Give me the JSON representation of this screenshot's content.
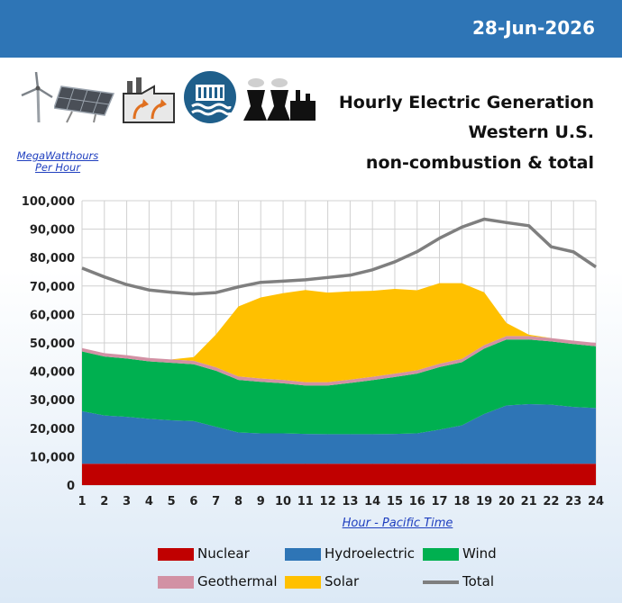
{
  "header": {
    "date": "28-Jun-2026"
  },
  "title_lines": [
    "Hourly Electric Generation",
    "Western U.S.",
    "non-combustion & total"
  ],
  "icons": [
    "wind-turbine-icon",
    "solar-panel-icon",
    "geothermal-plant-icon",
    "hydro-dam-icon",
    "power-plant-icon"
  ],
  "colors": {
    "banner": "#2e75b6",
    "nuclear": "#c00000",
    "hydro": "#2e75b6",
    "wind": "#00b050",
    "geothermal": "#d291a4",
    "solar": "#ffc000",
    "total": "#7f7f7f"
  },
  "chart_data": {
    "type": "area",
    "stacked": true,
    "ylabel": "MegaWatthours Per Hour",
    "xlabel": "Hour - Pacific Time",
    "ylim": [
      0,
      100000
    ],
    "ytick_step": 10000,
    "yticks": [
      "0",
      "10,000",
      "20,000",
      "30,000",
      "40,000",
      "50,000",
      "60,000",
      "70,000",
      "80,000",
      "90,000",
      "100,000"
    ],
    "grid": true,
    "legend_position": "bottom",
    "x": [
      1,
      2,
      3,
      4,
      5,
      6,
      7,
      8,
      9,
      10,
      11,
      12,
      13,
      14,
      15,
      16,
      17,
      18,
      19,
      20,
      21,
      22,
      23,
      24
    ],
    "series": [
      {
        "name": "Nuclear",
        "kind": "area",
        "values": [
          7500,
          7500,
          7500,
          7500,
          7500,
          7500,
          7500,
          7500,
          7500,
          7500,
          7500,
          7500,
          7500,
          7500,
          7500,
          7500,
          7500,
          7500,
          7500,
          7500,
          7500,
          7500,
          7500,
          7500
        ]
      },
      {
        "name": "Hydroelectric",
        "kind": "area",
        "values": [
          18500,
          17000,
          16500,
          15800,
          15300,
          15000,
          13000,
          11000,
          10700,
          10700,
          10500,
          10400,
          10400,
          10400,
          10500,
          10700,
          12000,
          13500,
          17500,
          20500,
          21000,
          20800,
          20000,
          19600
        ]
      },
      {
        "name": "Wind",
        "kind": "area",
        "values": [
          21000,
          20700,
          20500,
          20200,
          20200,
          20000,
          19700,
          18500,
          18100,
          17600,
          17000,
          17100,
          18000,
          19000,
          20000,
          21000,
          22000,
          22200,
          23000,
          23200,
          22700,
          22200,
          22100,
          21700
        ]
      },
      {
        "name": "Geothermal",
        "kind": "area",
        "values": [
          1200,
          1200,
          1200,
          1200,
          1200,
          1200,
          1200,
          1200,
          1200,
          1200,
          1200,
          1200,
          1200,
          1200,
          1200,
          1200,
          1200,
          1200,
          1200,
          1200,
          1200,
          1200,
          1200,
          1200
        ]
      },
      {
        "name": "Solar",
        "kind": "area",
        "values": [
          0,
          0,
          0,
          0,
          0,
          1300,
          11600,
          24600,
          28500,
          30500,
          32400,
          31500,
          31000,
          30200,
          29800,
          28100,
          28300,
          26600,
          18600,
          4600,
          500,
          0,
          0,
          0
        ]
      },
      {
        "name": "Total",
        "kind": "line",
        "values": [
          76300,
          73200,
          70500,
          68600,
          67800,
          67200,
          67700,
          69700,
          71300,
          71700,
          72200,
          73000,
          73800,
          75700,
          78500,
          82100,
          86800,
          90700,
          93500,
          92300,
          91200,
          83800,
          82000,
          76700
        ]
      }
    ]
  },
  "legend": [
    {
      "label": "Nuclear",
      "key": "nuclear",
      "kind": "box"
    },
    {
      "label": "Hydroelectric",
      "key": "hydro",
      "kind": "box"
    },
    {
      "label": "Wind",
      "key": "wind",
      "kind": "box"
    },
    {
      "label": "Geothermal",
      "key": "geothermal",
      "kind": "box"
    },
    {
      "label": "Solar",
      "key": "solar",
      "kind": "box"
    },
    {
      "label": "Total",
      "key": "total",
      "kind": "line"
    }
  ]
}
